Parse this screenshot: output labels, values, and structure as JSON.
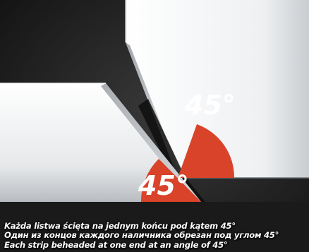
{
  "angle_labels": {
    "upper": "45°",
    "lower": "45°"
  },
  "caption": {
    "line_pl": "Każda listwa ścięta na jednym końcu pod kątem 45°",
    "line_ru": "Один из концов каждого наличника обрезан под углом 45°",
    "line_en": "Each strip beheaded at one end at an angle of 45°"
  },
  "colors": {
    "background": "#1c1c1c",
    "angle_marker": "#d8432a",
    "strip": "#eef0f2",
    "caption_text": "#ffffff"
  }
}
